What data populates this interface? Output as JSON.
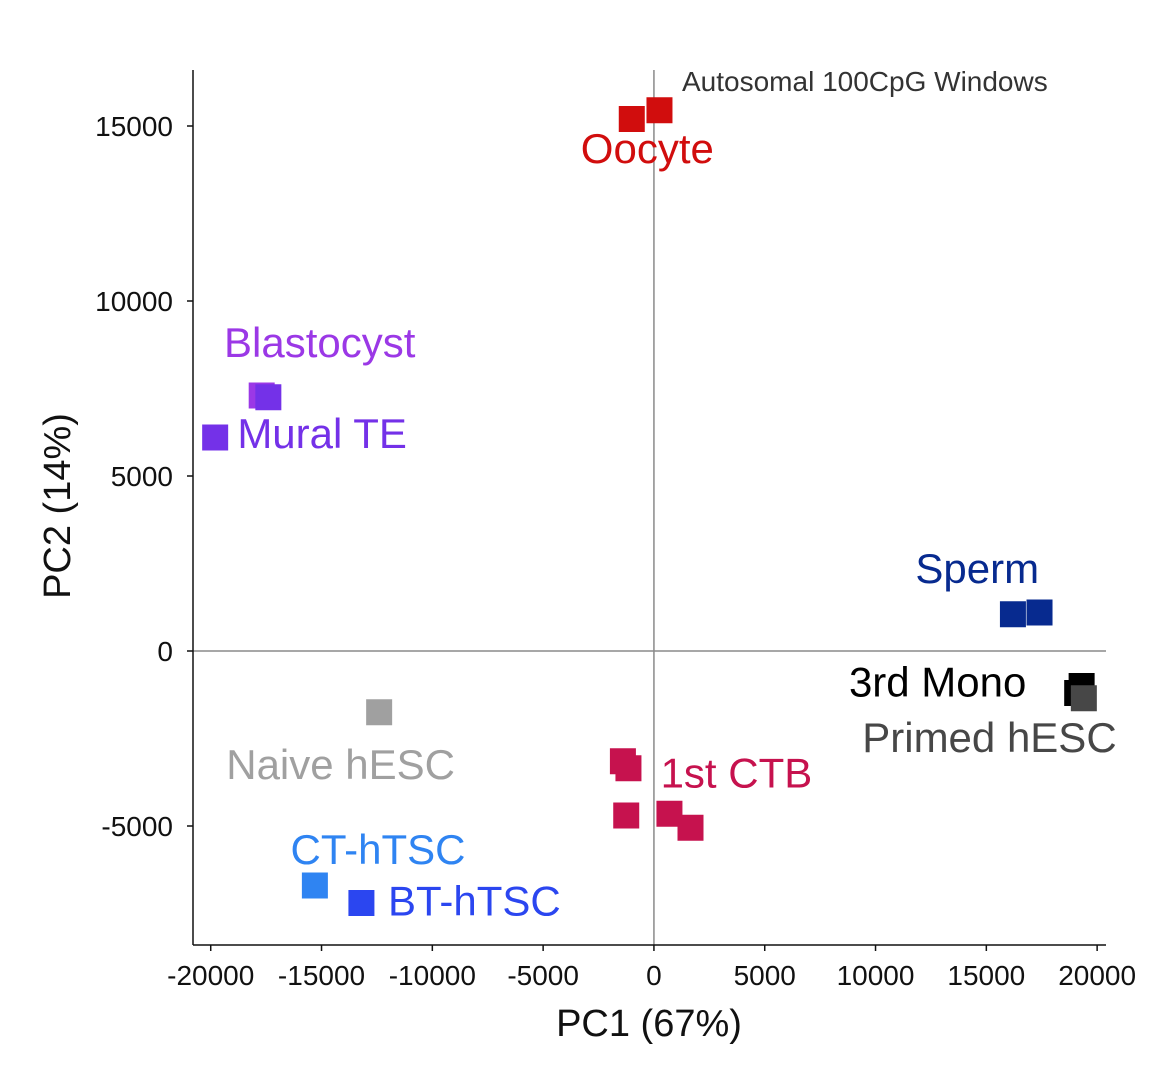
{
  "chart_data": {
    "type": "scatter",
    "title": "Autosomal 100CpG Windows",
    "xlabel": "PC1 (67%)",
    "ylabel": "PC2 (14%)",
    "xlim": [
      -20800,
      20400
    ],
    "ylim": [
      -8400,
      16600
    ],
    "xticks": [
      -20000,
      -15000,
      -10000,
      -5000,
      0,
      5000,
      10000,
      15000,
      20000
    ],
    "yticks": [
      -5000,
      0,
      5000,
      10000,
      15000
    ],
    "xtick_labels": [
      "-20000",
      "-15000",
      "-10000",
      "-5000",
      "0",
      "5000",
      "10000",
      "15000",
      "20000"
    ],
    "ytick_labels": [
      "-5000",
      "0",
      "5000",
      "10000",
      "15000"
    ],
    "reference_lines": {
      "x": 0,
      "y": 0
    },
    "grid": false,
    "marker": "square",
    "series": [
      {
        "name": "Oocyte",
        "color": "#d10d0d",
        "points": [
          [
            -1000,
            15200
          ],
          [
            250,
            15450
          ]
        ]
      },
      {
        "name": "Blastocyst",
        "color": "#9b38e6",
        "points": [
          [
            -17700,
            7300
          ]
        ]
      },
      {
        "name": "Mural TE",
        "color": "#7431e8",
        "points": [
          [
            -17400,
            7250
          ],
          [
            -19800,
            6100
          ]
        ]
      },
      {
        "name": "Sperm",
        "color": "#072a8f",
        "points": [
          [
            16200,
            1050
          ],
          [
            17400,
            1100
          ]
        ]
      },
      {
        "name": "3rd Mono",
        "color": "#000000",
        "points": [
          [
            19100,
            -1200
          ],
          [
            19300,
            -1000
          ]
        ]
      },
      {
        "name": "Primed hESC",
        "color": "#474747",
        "points": [
          [
            19400,
            -1350
          ]
        ]
      },
      {
        "name": "Naive hESC",
        "color": "#a0a0a0",
        "points": [
          [
            -12400,
            -1750
          ]
        ]
      },
      {
        "name": "1st CTB",
        "color": "#c6124e",
        "points": [
          [
            -1400,
            -3150
          ],
          [
            -1150,
            -3350
          ],
          [
            -1250,
            -4700
          ],
          [
            700,
            -4650
          ],
          [
            1650,
            -5050
          ]
        ]
      },
      {
        "name": "CT-hTSC",
        "color": "#2f84f2",
        "points": [
          [
            -15300,
            -6700
          ]
        ]
      },
      {
        "name": "BT-hTSC",
        "color": "#2b46f0",
        "points": [
          [
            -13200,
            -7200
          ]
        ]
      }
    ],
    "labels": [
      {
        "text": "Oocyte",
        "x": -3300,
        "y": 13950,
        "color": "#d10d0d"
      },
      {
        "text": "Blastocyst",
        "x": -19400,
        "y": 8400,
        "color": "#9b38e6"
      },
      {
        "text": "Mural TE",
        "x": -18800,
        "y": 5800,
        "color": "#7431e8"
      },
      {
        "text": "Sperm",
        "x": 11800,
        "y": 1950,
        "color": "#072a8f"
      },
      {
        "text": "3rd Mono",
        "x": 8800,
        "y": -1300,
        "color": "#000000"
      },
      {
        "text": "Primed hESC",
        "x": 9400,
        "y": -2880,
        "color": "#474747"
      },
      {
        "text": "Naive hESC",
        "x": -19300,
        "y": -3650,
        "color": "#a0a0a0"
      },
      {
        "text": "1st CTB",
        "x": 300,
        "y": -3900,
        "color": "#c6124e"
      },
      {
        "text": "CT-hTSC",
        "x": -16400,
        "y": -6080,
        "color": "#2f84f2"
      },
      {
        "text": "BT-hTSC",
        "x": -12000,
        "y": -7550,
        "color": "#2b46f0"
      }
    ]
  }
}
